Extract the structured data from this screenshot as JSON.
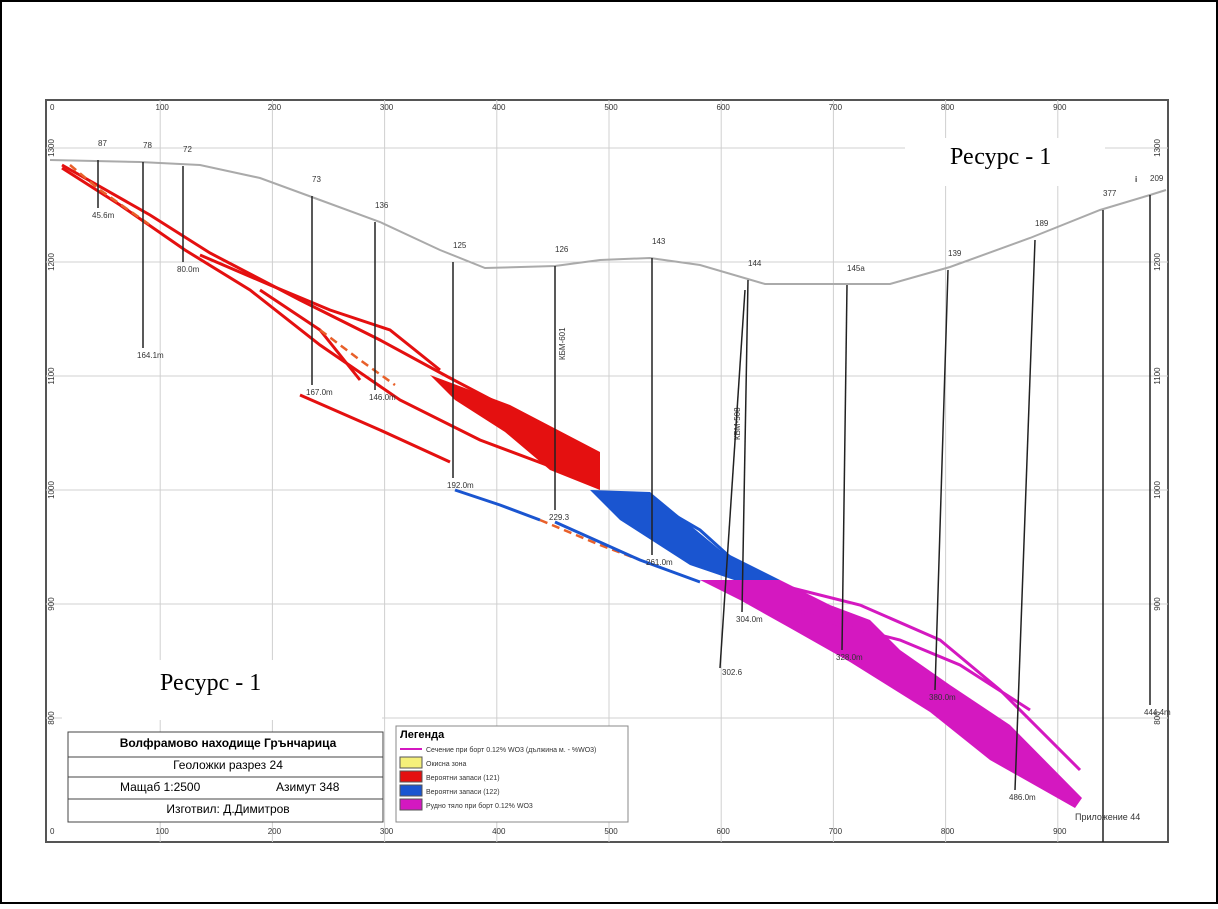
{
  "annotations": [
    "Ресурс - 1",
    "Ресурс - 1"
  ],
  "axes": {
    "x": [
      "0",
      "100",
      "200",
      "300",
      "400",
      "500",
      "600",
      "700",
      "800",
      "900"
    ],
    "elevation": [
      "1300",
      "1200",
      "1100",
      "1000",
      "900",
      "800"
    ]
  },
  "boreholes": [
    {
      "name": "87",
      "depth": "45.6m"
    },
    {
      "name": "78",
      "depth": "164.1m"
    },
    {
      "name": "72",
      "depth": "80.0m"
    },
    {
      "name": "73",
      "depth": "167.0m"
    },
    {
      "name": "136",
      "depth": "146.0m"
    },
    {
      "name": "125",
      "depth": "192.0m"
    },
    {
      "name": "126",
      "depth": "229.3"
    },
    {
      "name": "143",
      "depth": "261.0m"
    },
    {
      "name": "144",
      "depth": "304.0m"
    },
    {
      "name": "145a",
      "depth": "328.0m"
    },
    {
      "name": "139",
      "depth": "380.0m"
    },
    {
      "name": "189",
      "depth": "486.0m"
    },
    {
      "name": "377",
      "depth": null
    },
    {
      "name": "209",
      "depth": "444.4m"
    }
  ],
  "drillhole_ids": [
    "КБМ-601",
    "КБМ-508",
    "302.6"
  ],
  "legend": {
    "title": "Легенда",
    "items": [
      "Сечение при борт 0.12% WO3  (дължина м. - %WO3)",
      "Окисна зона",
      "Вероятни запаси (121)",
      "Вероятни запаси (122)",
      "Рудно тяло при борт 0.12% WO3"
    ]
  },
  "title_block": {
    "title": "Волфрамово находище Грънчарица",
    "section": "Геоложки разрез 24",
    "scale": "Мащаб 1:2500",
    "azimuth": "Азимут 348",
    "author": "Изготвил:  Д.Димитров"
  },
  "appendix": "Приложение 44"
}
